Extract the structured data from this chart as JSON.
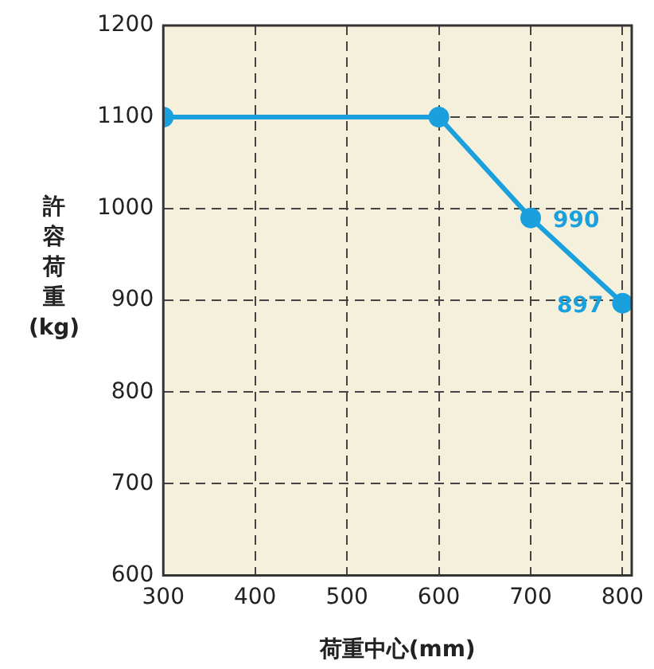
{
  "chart_data": {
    "type": "line",
    "xlabel": "荷重中心(mm)",
    "ylabel": "許容荷重(kg)",
    "x": [
      300,
      600,
      700,
      800
    ],
    "series": [
      {
        "color": "#1aa0dc",
        "values": [
          1100,
          1100,
          990,
          897
        ],
        "value_labels": [
          null,
          null,
          "990",
          "897"
        ]
      }
    ],
    "xlim": [
      300,
      810
    ],
    "xticks": [
      300,
      400,
      500,
      600,
      700,
      800
    ],
    "ylim": [
      600,
      1200
    ],
    "yticks": [
      600,
      700,
      800,
      900,
      1000,
      1100,
      1200
    ],
    "grid": true,
    "marker": "circle",
    "line_style": "solid",
    "legend": false
  }
}
